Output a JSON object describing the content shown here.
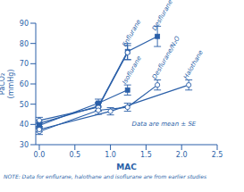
{
  "chart_data": {
    "type": "line",
    "xlabel": "MAC",
    "ylabel": "PaCO₂\n(mmHg)",
    "annotations": [
      "Data are mean ± SE",
      "NOTE: Data for enflurane, halothane and isoflurane are from earlier studies"
    ],
    "color": "#2a5fa8",
    "grid": false,
    "xlim": [
      -0.05,
      2.5
    ],
    "ylim": [
      30,
      90
    ],
    "xticks": [
      {
        "value": 0,
        "label": "0.0"
      },
      0.5,
      {
        "value": 1.0,
        "label": "1.0"
      },
      1.5,
      {
        "value": 2.0,
        "label": "2.0"
      },
      2.5
    ],
    "yticks": [
      30,
      40,
      50,
      60,
      70,
      80,
      90
    ],
    "series": [
      {
        "name": "Desflurane",
        "marker": "square",
        "x": [
          0,
          0.83,
          1.24,
          1.66
        ],
        "values": [
          40.5,
          49.0,
          76.0,
          83.5
        ],
        "error": [
          1.5,
          2.0,
          4.0,
          5.0
        ]
      },
      {
        "name": "Enflurane",
        "marker": "open_circle",
        "x": [
          0,
          0.83,
          1.24
        ],
        "values": [
          42.0,
          48.5,
          75.5
        ],
        "error": [
          1.5,
          2.0,
          3.5
        ]
      },
      {
        "name": "Isoflurane",
        "marker": "square",
        "x": [
          0,
          0.83,
          1.24
        ],
        "values": [
          39.5,
          50.5,
          57.0
        ],
        "error": [
          1.5,
          2.0,
          2.5
        ]
      },
      {
        "name": "Desflurane/N₂O",
        "marker": "open_circle",
        "x": [
          0,
          0.83,
          1.24,
          1.66
        ],
        "values": [
          36.5,
          47.0,
          48.5,
          59.5
        ],
        "error": [
          1.5,
          2.0,
          2.0,
          2.5
        ]
      },
      {
        "name": "Halothane",
        "marker": "open_circle",
        "x": [
          0,
          1.0,
          2.1
        ],
        "values": [
          37.5,
          46.5,
          59.5
        ],
        "error": [
          1.2,
          1.8,
          2.5
        ]
      }
    ]
  }
}
